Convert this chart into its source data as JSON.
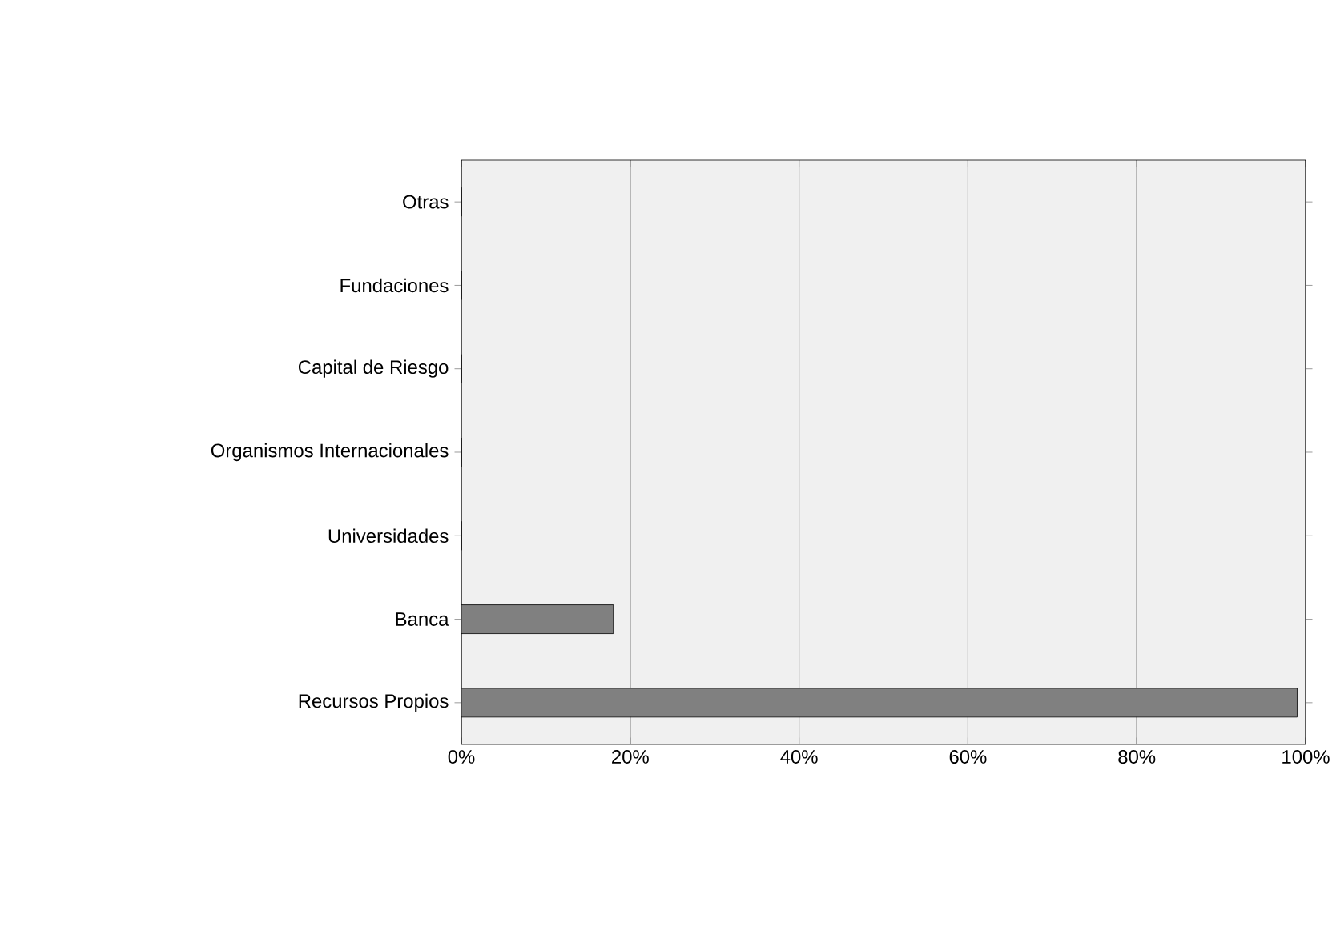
{
  "chart_data": {
    "type": "bar",
    "orientation": "horizontal",
    "categories": [
      "Otras",
      "Fundaciones",
      "Capital de Riesgo",
      "Organismos Internacionales",
      "Universidades",
      "Banca",
      "Recursos Propios"
    ],
    "values": [
      0,
      0,
      0,
      0,
      0,
      18,
      99
    ],
    "color": "#808080",
    "xlim": [
      0,
      100
    ],
    "xticks": [
      {
        "value": 0,
        "label": "0%"
      },
      {
        "value": 20,
        "label": "20%"
      },
      {
        "value": 40,
        "label": "40%"
      },
      {
        "value": 60,
        "label": "60%"
      },
      {
        "value": 80,
        "label": "80%"
      },
      {
        "value": 100,
        "label": "100%"
      }
    ],
    "grid": "x"
  }
}
